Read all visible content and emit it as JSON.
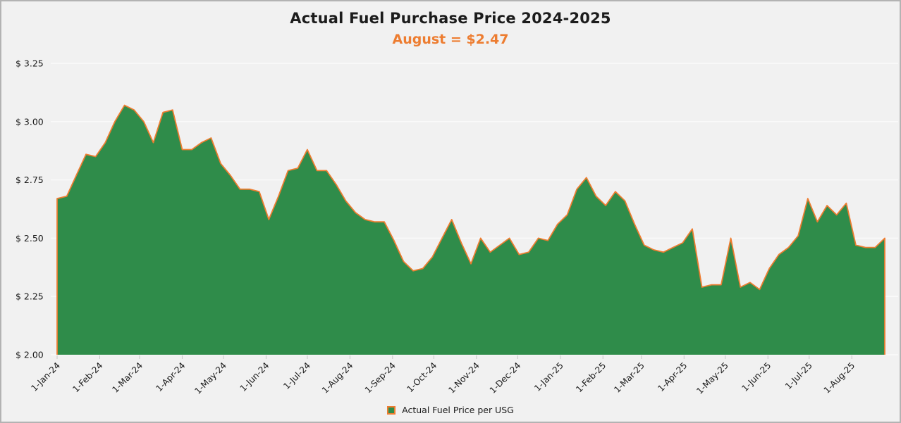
{
  "chart": {
    "title": "Actual Fuel Purchase Price 2024-2025",
    "subtitle": "August = $2.47",
    "legend": {
      "label": "Actual Fuel Price per USG"
    },
    "colors": {
      "area_fill": "#2F8C4A",
      "area_border": "#ED7D31",
      "subtitle_text": "#ED7D31",
      "title_text": "#1C1C1C",
      "background": "#F1F1F1",
      "gridline": "#FAFAFA",
      "axis_text": "#1A1A1A",
      "tick_mark": "#C6C6C6",
      "frame_border": "#B3B3B3"
    }
  },
  "chart_data": {
    "type": "area",
    "title": "Actual Fuel Purchase Price 2024-2025",
    "subtitle": "August = $2.47",
    "xlabel": "",
    "ylabel": "",
    "ylim": [
      2.0,
      3.25
    ],
    "grid": "horizontal-faint",
    "legend_position": "bottom-center",
    "y_tick_values": [
      2.0,
      2.25,
      2.5,
      2.75,
      3.0,
      3.25
    ],
    "y_tick_labels": [
      "$ 2.00",
      "$ 2.25",
      "$ 2.50",
      "$ 2.75",
      "$ 3.00",
      "$ 3.25"
    ],
    "x_tick_labels": [
      "1-Jan-24",
      "1-Feb-24",
      "1-Mar-24",
      "1-Apr-24",
      "1-May-24",
      "1-Jun-24",
      "1-Jul-24",
      "1-Aug-24",
      "1-Sep-24",
      "1-Oct-24",
      "1-Nov-24",
      "1-Dec-24",
      "1-Jan-25",
      "1-Feb-25",
      "1-Mar-25",
      "1-Apr-25",
      "1-May-25",
      "1-Jun-25",
      "1-Jul-25",
      "1-Aug-25"
    ],
    "series": [
      {
        "name": "Actual Fuel Price per USG",
        "frequency": "weekly",
        "dates": [
          "1-Jan-24",
          "8-Jan-24",
          "15-Jan-24",
          "22-Jan-24",
          "29-Jan-24",
          "5-Feb-24",
          "12-Feb-24",
          "19-Feb-24",
          "26-Feb-24",
          "4-Mar-24",
          "11-Mar-24",
          "18-Mar-24",
          "25-Mar-24",
          "1-Apr-24",
          "8-Apr-24",
          "15-Apr-24",
          "22-Apr-24",
          "29-Apr-24",
          "6-May-24",
          "13-May-24",
          "20-May-24",
          "27-May-24",
          "3-Jun-24",
          "10-Jun-24",
          "17-Jun-24",
          "24-Jun-24",
          "1-Jul-24",
          "8-Jul-24",
          "15-Jul-24",
          "22-Jul-24",
          "29-Jul-24",
          "5-Aug-24",
          "12-Aug-24",
          "19-Aug-24",
          "26-Aug-24",
          "2-Sep-24",
          "9-Sep-24",
          "16-Sep-24",
          "23-Sep-24",
          "30-Sep-24",
          "7-Oct-24",
          "14-Oct-24",
          "21-Oct-24",
          "28-Oct-24",
          "4-Nov-24",
          "11-Nov-24",
          "18-Nov-24",
          "25-Nov-24",
          "2-Dec-24",
          "9-Dec-24",
          "16-Dec-24",
          "23-Dec-24",
          "30-Dec-24",
          "6-Jan-25",
          "13-Jan-25",
          "20-Jan-25",
          "27-Jan-25",
          "3-Feb-25",
          "10-Feb-25",
          "17-Feb-25",
          "24-Feb-25",
          "3-Mar-25",
          "10-Mar-25",
          "17-Mar-25",
          "24-Mar-25",
          "31-Mar-25",
          "7-Apr-25",
          "14-Apr-25",
          "21-Apr-25",
          "28-Apr-25",
          "5-May-25",
          "12-May-25",
          "19-May-25",
          "26-May-25",
          "2-Jun-25",
          "9-Jun-25",
          "16-Jun-25",
          "23-Jun-25",
          "30-Jun-25",
          "7-Jul-25",
          "14-Jul-25",
          "21-Jul-25",
          "28-Jul-25",
          "4-Aug-25",
          "11-Aug-25",
          "18-Aug-25",
          "25-Aug-25"
        ],
        "values": [
          2.67,
          2.68,
          2.77,
          2.86,
          2.85,
          2.91,
          3.0,
          3.07,
          3.05,
          3.0,
          2.91,
          3.04,
          3.05,
          2.88,
          2.88,
          2.91,
          2.93,
          2.82,
          2.77,
          2.71,
          2.71,
          2.7,
          2.58,
          2.68,
          2.79,
          2.8,
          2.88,
          2.79,
          2.79,
          2.73,
          2.66,
          2.61,
          2.58,
          2.57,
          2.57,
          2.49,
          2.4,
          2.36,
          2.37,
          2.42,
          2.5,
          2.58,
          2.48,
          2.39,
          2.5,
          2.44,
          2.47,
          2.5,
          2.43,
          2.44,
          2.5,
          2.49,
          2.56,
          2.6,
          2.71,
          2.76,
          2.68,
          2.64,
          2.7,
          2.66,
          2.56,
          2.47,
          2.45,
          2.44,
          2.46,
          2.48,
          2.54,
          2.29,
          2.3,
          2.3,
          2.5,
          2.29,
          2.31,
          2.28,
          2.37,
          2.43,
          2.46,
          2.51,
          2.67,
          2.57,
          2.64,
          2.6,
          2.65,
          2.47,
          2.46,
          2.46,
          2.5
        ]
      }
    ]
  }
}
